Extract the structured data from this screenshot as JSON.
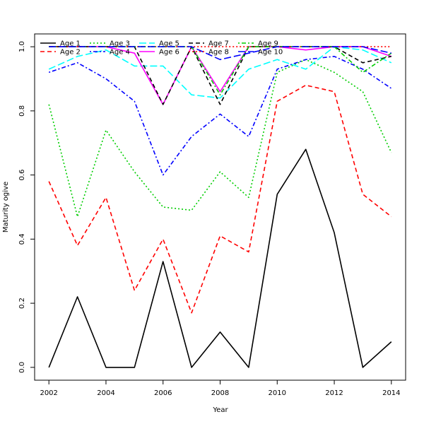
{
  "chart_data": {
    "type": "line",
    "title": "",
    "xlabel": "Year",
    "ylabel": "Maturity ogive",
    "x": [
      2002,
      2003,
      2004,
      2005,
      2006,
      2007,
      2008,
      2009,
      2010,
      2011,
      2012,
      2013,
      2014
    ],
    "xlim": [
      2001.5,
      2014.5
    ],
    "ylim": [
      -0.04,
      1.04
    ],
    "xticks": [
      2002,
      2004,
      2006,
      2008,
      2010,
      2012,
      2014
    ],
    "yticks": [
      0.0,
      0.2,
      0.4,
      0.6,
      0.8,
      1.0
    ],
    "ytick_labels": [
      "0.0",
      "0.2",
      "0.4",
      "0.6",
      "0.8",
      "1.0"
    ],
    "grid": false,
    "legend_position": "top-left",
    "series": [
      {
        "name": "Age 1",
        "color": "#000000",
        "dash": "solid",
        "values": [
          0.0,
          0.22,
          0.0,
          0.0,
          0.33,
          0.0,
          0.11,
          0.0,
          0.54,
          0.68,
          0.42,
          0.0,
          0.08
        ]
      },
      {
        "name": "Age 2",
        "color": "#ff0000",
        "dash": "dashed",
        "values": [
          0.58,
          0.38,
          0.53,
          0.24,
          0.4,
          0.17,
          0.41,
          0.36,
          0.83,
          0.88,
          0.86,
          0.54,
          0.47
        ]
      },
      {
        "name": "Age 3",
        "color": "#00cd00",
        "dash": "dotted",
        "values": [
          0.82,
          0.47,
          0.74,
          0.61,
          0.5,
          0.49,
          0.61,
          0.53,
          0.92,
          0.96,
          0.92,
          0.86,
          0.67
        ]
      },
      {
        "name": "Age 4",
        "color": "#0000ff",
        "dash": "dotdash",
        "values": [
          0.92,
          0.95,
          0.9,
          0.83,
          0.6,
          0.72,
          0.79,
          0.72,
          0.93,
          0.96,
          0.97,
          0.93,
          0.87
        ]
      },
      {
        "name": "Age 5",
        "color": "#00ffff",
        "dash": "longdash",
        "values": [
          0.93,
          0.97,
          0.99,
          0.94,
          0.94,
          0.85,
          0.84,
          0.93,
          0.96,
          0.93,
          1.0,
          0.99,
          0.95
        ]
      },
      {
        "name": "Age 6",
        "color": "#ff00ff",
        "dash": "solid",
        "values": [
          1.0,
          1.0,
          1.0,
          0.98,
          0.82,
          1.0,
          0.86,
          1.0,
          1.0,
          0.99,
          1.0,
          1.0,
          0.97
        ]
      },
      {
        "name": "Age 7",
        "color": "#000000",
        "dash": "dashed",
        "values": [
          1.0,
          1.0,
          1.0,
          1.0,
          0.82,
          1.0,
          0.82,
          1.0,
          1.0,
          1.0,
          1.0,
          0.95,
          0.97
        ]
      },
      {
        "name": "Age 8",
        "color": "#ff0000",
        "dash": "dotted",
        "values": [
          1.0,
          1.0,
          1.0,
          1.0,
          1.0,
          1.0,
          1.0,
          1.0,
          1.0,
          1.0,
          1.0,
          1.0,
          1.0
        ]
      },
      {
        "name": "Age 9",
        "color": "#00cd00",
        "dash": "dotdash",
        "values": [
          1.0,
          1.0,
          1.0,
          1.0,
          1.0,
          1.0,
          0.85,
          1.0,
          1.0,
          1.0,
          1.0,
          0.92,
          0.98
        ]
      },
      {
        "name": "Age 10",
        "color": "#0000ff",
        "dash": "longdash",
        "values": [
          1.0,
          1.0,
          1.0,
          1.0,
          1.0,
          1.0,
          0.96,
          0.98,
          1.0,
          1.0,
          1.0,
          1.0,
          0.98
        ]
      }
    ]
  }
}
